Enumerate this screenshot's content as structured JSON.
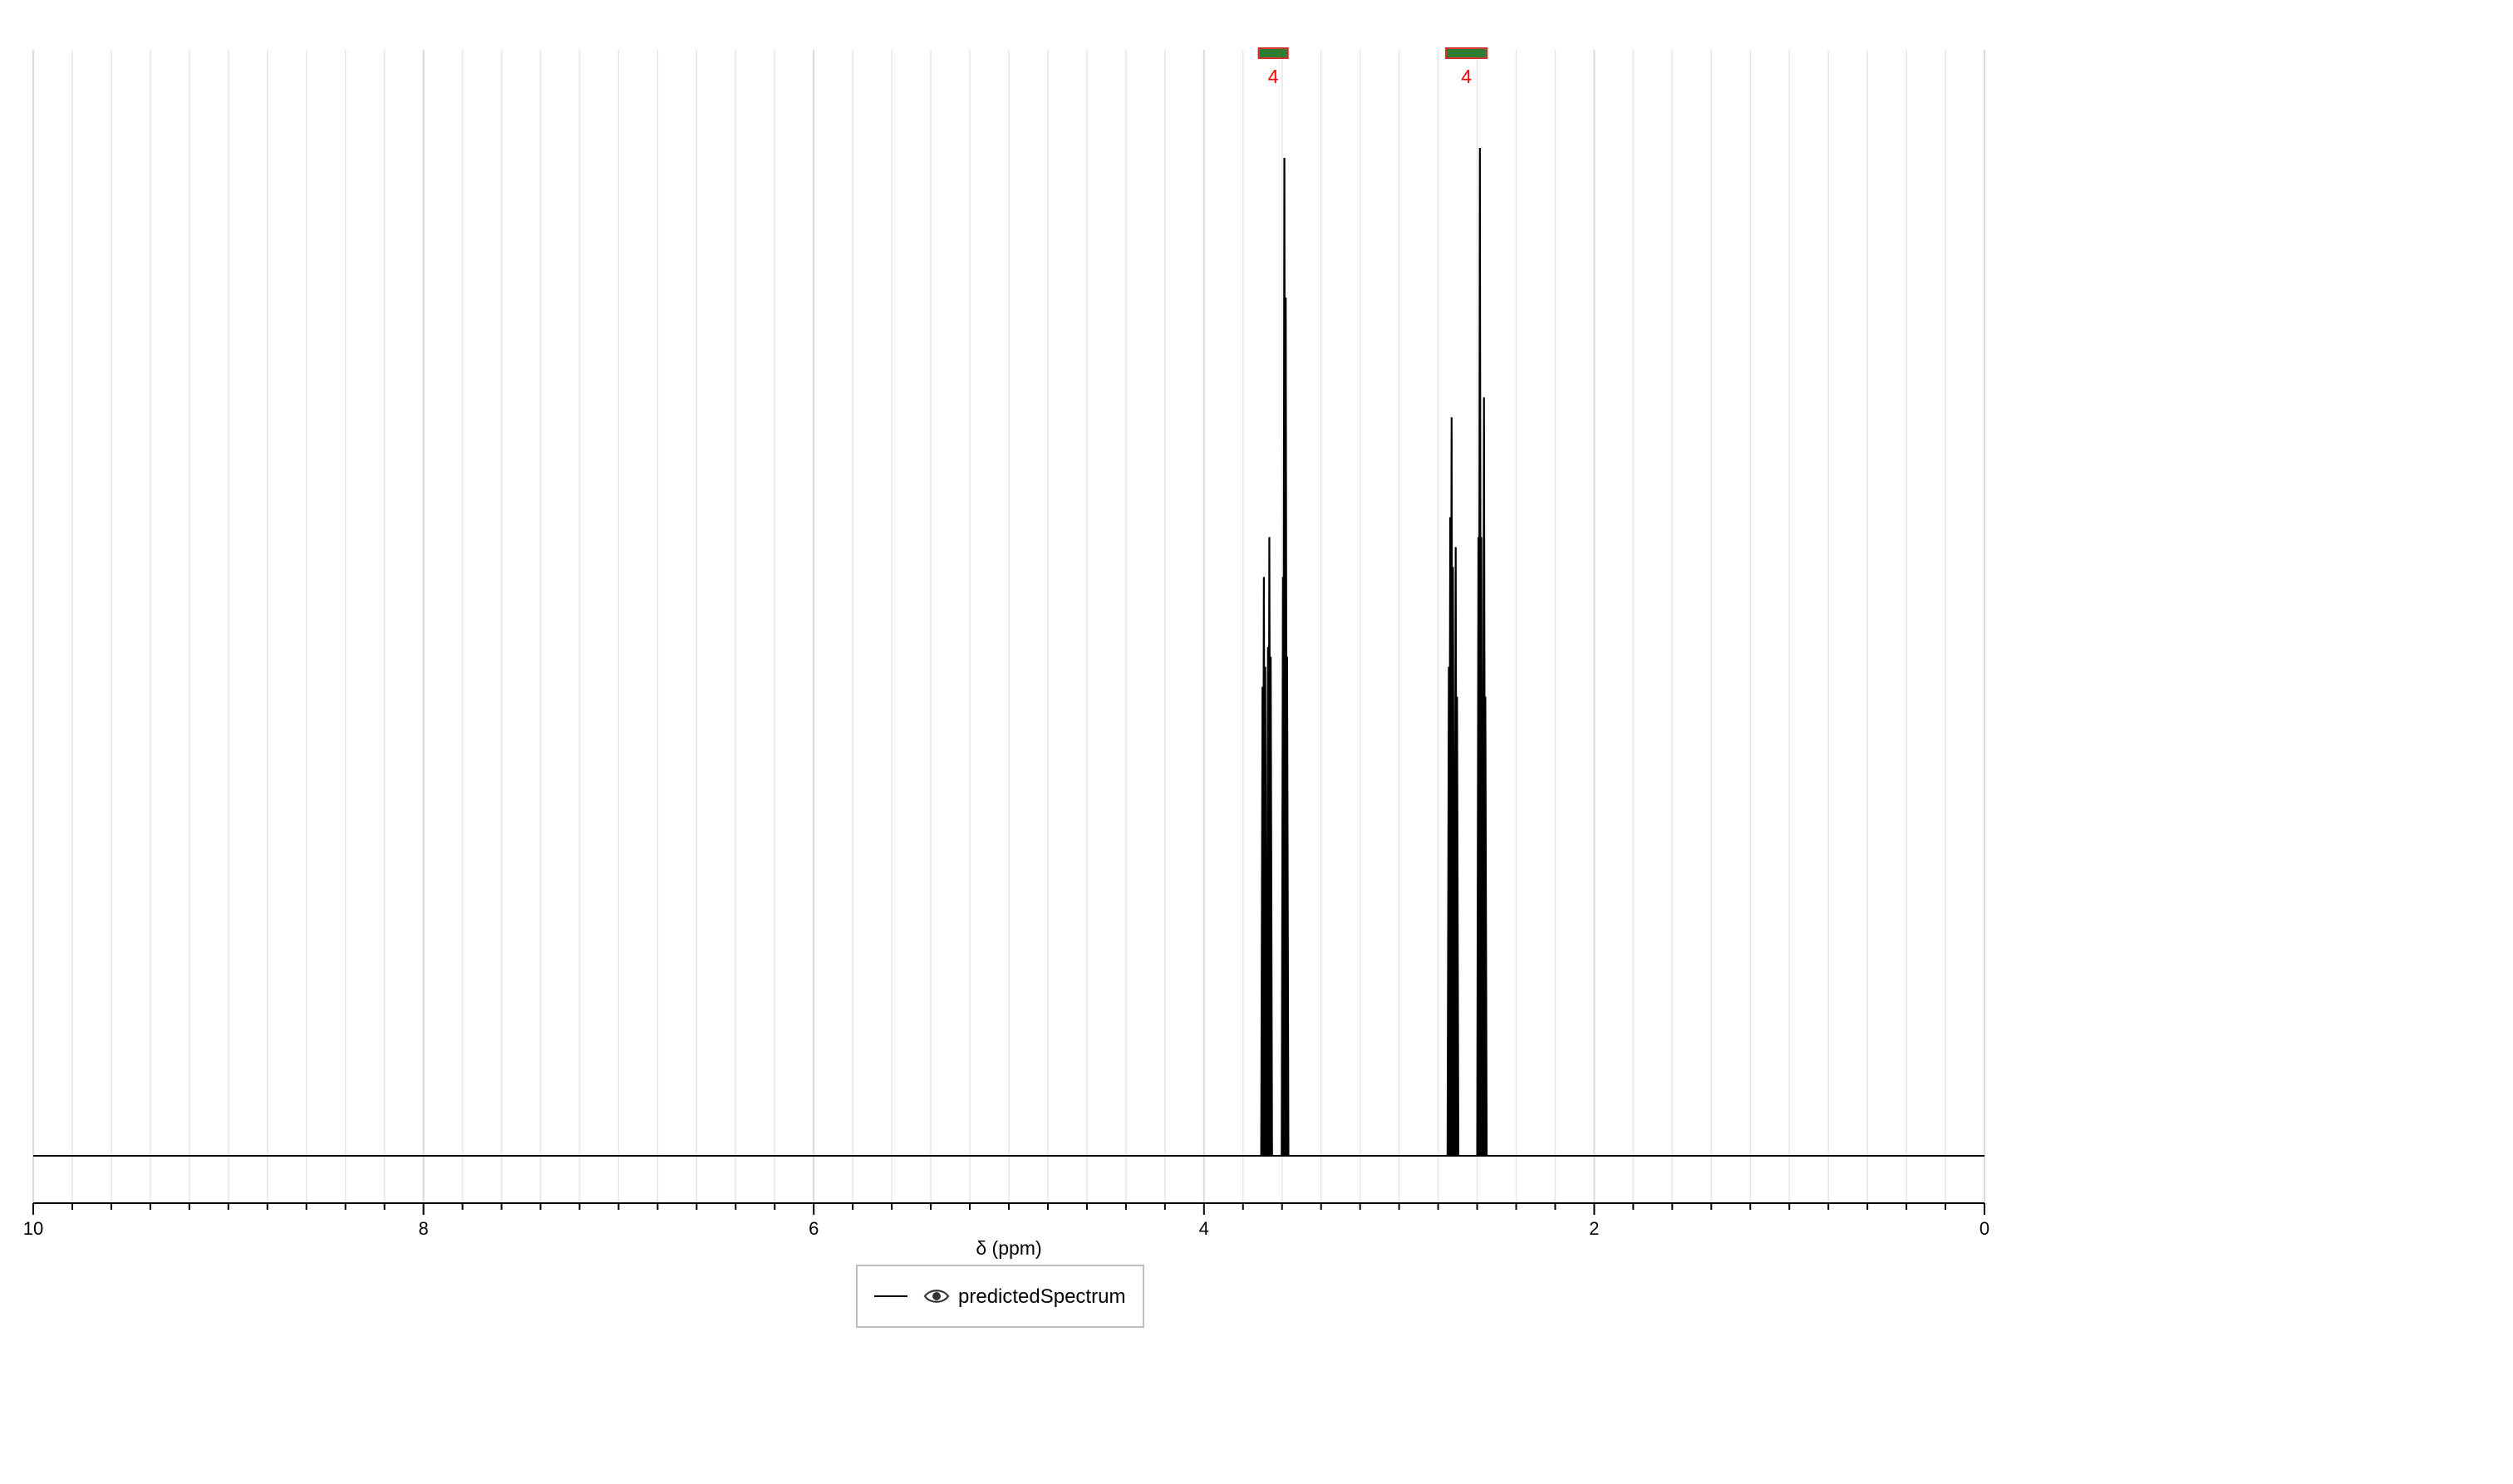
{
  "chart_data": {
    "type": "line",
    "title": "",
    "xlabel": "δ (ppm)",
    "ylabel": "",
    "xlim": [
      10,
      0
    ],
    "x_reversed": true,
    "major_ticks": [
      10,
      8,
      6,
      4,
      2,
      0
    ],
    "minor_tick_step": 0.2,
    "grid": true,
    "legend": {
      "placement": "bottom-center",
      "entries": [
        {
          "name": "predictedSpectrum",
          "icon": "eye-icon"
        }
      ]
    },
    "colors": {
      "line": "#000000",
      "integral_label": "#ff0000",
      "integral_fill": "#2e7d32",
      "integral_border": "#d32f2f",
      "grid": "#e6e6e6"
    },
    "series": [
      {
        "name": "predictedSpectrum",
        "baseline": 0,
        "peaks": [
          {
            "ppm": 3.7,
            "intensity": 0.47
          },
          {
            "ppm": 3.693,
            "intensity": 0.58
          },
          {
            "ppm": 3.686,
            "intensity": 0.49
          },
          {
            "ppm": 3.672,
            "intensity": 0.51
          },
          {
            "ppm": 3.665,
            "intensity": 0.62
          },
          {
            "ppm": 3.658,
            "intensity": 0.5
          },
          {
            "ppm": 3.595,
            "intensity": 0.58
          },
          {
            "ppm": 3.588,
            "intensity": 1.0
          },
          {
            "ppm": 3.581,
            "intensity": 0.86
          },
          {
            "ppm": 3.574,
            "intensity": 0.5
          },
          {
            "ppm": 2.745,
            "intensity": 0.49
          },
          {
            "ppm": 2.738,
            "intensity": 0.64
          },
          {
            "ppm": 2.731,
            "intensity": 0.74
          },
          {
            "ppm": 2.724,
            "intensity": 0.59
          },
          {
            "ppm": 2.71,
            "intensity": 0.61
          },
          {
            "ppm": 2.703,
            "intensity": 0.46
          },
          {
            "ppm": 2.593,
            "intensity": 0.62
          },
          {
            "ppm": 2.586,
            "intensity": 1.01
          },
          {
            "ppm": 2.579,
            "intensity": 0.62
          },
          {
            "ppm": 2.565,
            "intensity": 0.76
          },
          {
            "ppm": 2.558,
            "intensity": 0.46
          }
        ]
      }
    ],
    "integrals": [
      {
        "from": 3.72,
        "to": 3.57,
        "value": "4"
      },
      {
        "from": 2.76,
        "to": 2.55,
        "value": "4"
      }
    ]
  }
}
